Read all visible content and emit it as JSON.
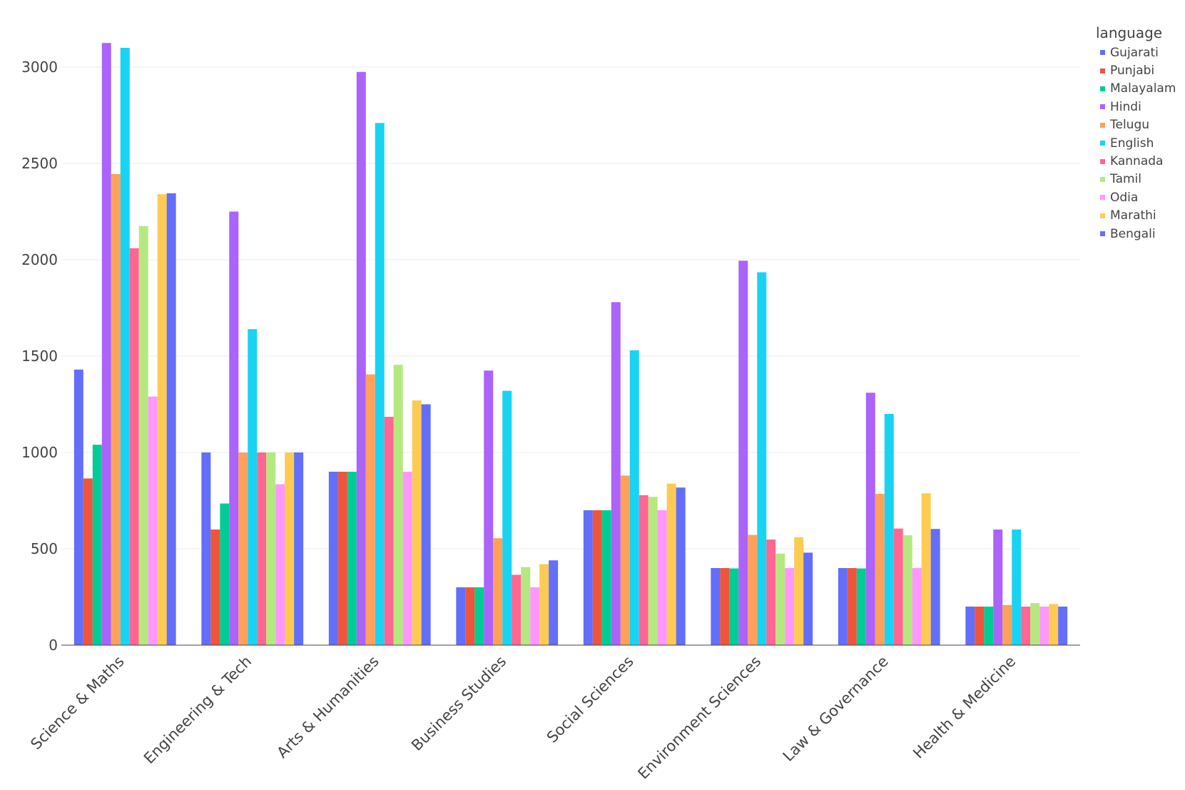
{
  "chart_data": {
    "type": "bar",
    "title": "",
    "xlabel": "",
    "ylabel": "",
    "ylim": [
      0,
      3200
    ],
    "yticks": [
      0,
      500,
      1000,
      1500,
      2000,
      2500,
      3000
    ],
    "grid": true,
    "legend_title": "language",
    "legend_position": "top-right",
    "categories": [
      "Science & Maths",
      "Engineering & Tech",
      "Arts & Humanities",
      "Business Studies",
      "Social Sciences",
      "Environment Sciences",
      "Law & Governance",
      "Health & Medicine"
    ],
    "series": [
      {
        "name": "Gujarati",
        "color": "#636efa",
        "values": [
          1430,
          1000,
          900,
          300,
          700,
          400,
          400,
          200
        ]
      },
      {
        "name": "Punjabi",
        "color": "#ef553b",
        "values": [
          865,
          600,
          900,
          300,
          700,
          400,
          400,
          200
        ]
      },
      {
        "name": "Malayalam",
        "color": "#00cc96",
        "values": [
          1040,
          735,
          900,
          300,
          700,
          398,
          398,
          200
        ]
      },
      {
        "name": "Hindi",
        "color": "#ab63fa",
        "values": [
          3125,
          2250,
          2975,
          1425,
          1780,
          1995,
          1310,
          600
        ]
      },
      {
        "name": "Telugu",
        "color": "#ffa15a",
        "values": [
          2445,
          1000,
          1405,
          555,
          880,
          572,
          785,
          208
        ]
      },
      {
        "name": "English",
        "color": "#19d3f3",
        "values": [
          3100,
          1640,
          2710,
          1320,
          1530,
          1935,
          1200,
          600
        ]
      },
      {
        "name": "Kannada",
        "color": "#ff6692",
        "values": [
          2060,
          1000,
          1185,
          365,
          778,
          548,
          605,
          200
        ]
      },
      {
        "name": "Tamil",
        "color": "#b6e880",
        "values": [
          2175,
          1000,
          1455,
          405,
          770,
          475,
          570,
          218
        ]
      },
      {
        "name": "Odia",
        "color": "#ff97ff",
        "values": [
          1290,
          835,
          900,
          300,
          700,
          400,
          400,
          200
        ]
      },
      {
        "name": "Marathi",
        "color": "#fecb52",
        "values": [
          2340,
          1000,
          1270,
          420,
          838,
          560,
          788,
          213
        ]
      },
      {
        "name": "Bengali",
        "color": "#636efa",
        "values": [
          2345,
          1000,
          1250,
          440,
          818,
          480,
          603,
          200
        ]
      }
    ]
  }
}
